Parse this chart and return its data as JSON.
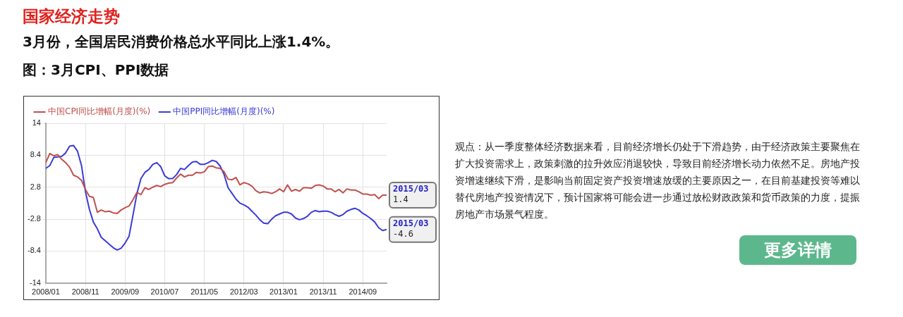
{
  "chart_data": {
    "type": "line",
    "title": "国家经济走势",
    "subtitle": "3月份，全国居民消费价格总水平同比上涨1.4%。",
    "annotations": [
      "图：3月CPI、PPI数据",
      "观点：从一季度整体经济数据来看，目前经济增长仍处于下滑趋势，由于经济政策主要聚焦在扩大投资需求上，政策刺激的拉升效应消退较快，导致目前经济增长动力依然不足。房地产投资增速继续下滑，是影响当前固定资产投资增速放缓的主要原因之一，在目前基建投资等难以替代房地产投资情况下，预计国家将可能会进一步通过放松财政政策和货币政策的力度，提振房地产市场景气程度。",
      "更多详情",
      {
        "text": "2015/03\n1.4",
        "x": "2015-03",
        "y": 1.4
      },
      {
        "text": "2015/03\n-4.6",
        "x": "2015-03",
        "y": -4.6
      }
    ],
    "x": [
      "2008-01",
      "2008-02",
      "2008-03",
      "2008-04",
      "2008-05",
      "2008-06",
      "2008-07",
      "2008-08",
      "2008-09",
      "2008-10",
      "2008-11",
      "2008-12",
      "2009-01",
      "2009-02",
      "2009-03",
      "2009-04",
      "2009-05",
      "2009-06",
      "2009-07",
      "2009-08",
      "2009-09",
      "2009-10",
      "2009-11",
      "2009-12",
      "2010-01",
      "2010-02",
      "2010-03",
      "2010-04",
      "2010-05",
      "2010-06",
      "2010-07",
      "2010-08",
      "2010-09",
      "2010-10",
      "2010-11",
      "2010-12",
      "2011-01",
      "2011-02",
      "2011-03",
      "2011-04",
      "2011-05",
      "2011-06",
      "2011-07",
      "2011-08",
      "2011-09",
      "2011-10",
      "2011-11",
      "2011-12",
      "2012-01",
      "2012-02",
      "2012-03",
      "2012-04",
      "2012-05",
      "2012-06",
      "2012-07",
      "2012-08",
      "2012-09",
      "2012-10",
      "2012-11",
      "2012-12",
      "2013-01",
      "2013-02",
      "2013-03",
      "2013-04",
      "2013-05",
      "2013-06",
      "2013-07",
      "2013-08",
      "2013-09",
      "2013-10",
      "2013-11",
      "2013-12",
      "2014-01",
      "2014-02",
      "2014-03",
      "2014-04",
      "2014-05",
      "2014-06",
      "2014-07",
      "2014-08",
      "2014-09",
      "2014-10",
      "2014-11",
      "2014-12",
      "2015-01",
      "2015-02",
      "2015-03"
    ],
    "series": [
      {
        "name": "中国CPI同比增幅(月度)(%)",
        "color": "#c0504d",
        "values": [
          7.1,
          8.7,
          8.3,
          8.5,
          7.7,
          7.1,
          6.3,
          4.9,
          4.6,
          4.0,
          2.4,
          1.2,
          1.0,
          -1.6,
          -1.2,
          -1.5,
          -1.4,
          -1.7,
          -1.8,
          -1.2,
          -0.8,
          -0.5,
          0.6,
          1.9,
          1.5,
          2.7,
          2.4,
          2.8,
          3.1,
          2.9,
          3.3,
          3.5,
          3.6,
          4.4,
          5.1,
          4.6,
          4.9,
          4.9,
          5.4,
          5.3,
          5.5,
          6.4,
          6.5,
          6.2,
          6.1,
          5.5,
          4.2,
          4.1,
          4.5,
          3.2,
          3.6,
          3.4,
          3.0,
          2.2,
          1.8,
          2.0,
          1.9,
          1.7,
          2.0,
          2.5,
          2.0,
          3.2,
          2.1,
          2.4,
          2.1,
          2.7,
          2.7,
          2.6,
          3.1,
          3.2,
          3.0,
          2.5,
          2.5,
          2.0,
          2.4,
          1.8,
          2.5,
          2.3,
          2.3,
          2.0,
          1.6,
          1.6,
          1.4,
          1.5,
          0.8,
          1.4,
          1.4
        ]
      },
      {
        "name": "中国PPI同比增幅(月度)(%)",
        "color": "#3b3bd8",
        "values": [
          6.1,
          6.6,
          8.0,
          8.1,
          8.2,
          8.8,
          10.0,
          10.1,
          9.1,
          6.6,
          2.0,
          -1.1,
          -3.3,
          -4.5,
          -6.0,
          -6.6,
          -7.2,
          -7.8,
          -8.2,
          -7.9,
          -7.0,
          -5.8,
          -2.1,
          1.7,
          4.3,
          5.4,
          5.9,
          6.8,
          7.1,
          6.4,
          4.8,
          4.3,
          4.3,
          5.0,
          6.1,
          5.9,
          6.6,
          7.2,
          7.3,
          6.8,
          6.8,
          7.1,
          7.5,
          7.3,
          6.5,
          5.0,
          2.7,
          1.7,
          0.7,
          0.0,
          -0.3,
          -0.7,
          -1.4,
          -2.1,
          -2.9,
          -3.5,
          -3.6,
          -2.8,
          -2.2,
          -1.9,
          -1.6,
          -1.6,
          -1.9,
          -2.6,
          -2.9,
          -2.7,
          -2.3,
          -1.6,
          -1.3,
          -1.5,
          -1.4,
          -1.4,
          -1.6,
          -2.0,
          -2.3,
          -2.0,
          -1.4,
          -1.1,
          -0.9,
          -1.2,
          -1.8,
          -2.2,
          -2.7,
          -3.3,
          -4.3,
          -4.8,
          -4.6
        ]
      }
    ],
    "xlim": [
      "2008-01",
      "2015-03"
    ],
    "xticks": [
      {
        "value": "2008-01",
        "label": "2008/01"
      },
      {
        "value": "2008-11",
        "label": "2008/11"
      },
      {
        "value": "2009-09",
        "label": "2009/09"
      },
      {
        "value": "2010-07",
        "label": "2010/07"
      },
      {
        "value": "2011-05",
        "label": "2011/05"
      },
      {
        "value": "2012-03",
        "label": "2012/03"
      },
      {
        "value": "2013-01",
        "label": "2013/01"
      },
      {
        "value": "2013-11",
        "label": "2013/11"
      },
      {
        "value": "2014-09",
        "label": "2014/09"
      }
    ],
    "ylim": [
      -14,
      14
    ],
    "yticks": [
      14,
      8.4,
      2.8,
      -2.8,
      -8.4,
      -14
    ],
    "grid": true,
    "legend": "top left",
    "marker": "none",
    "line_style": "solid"
  }
}
